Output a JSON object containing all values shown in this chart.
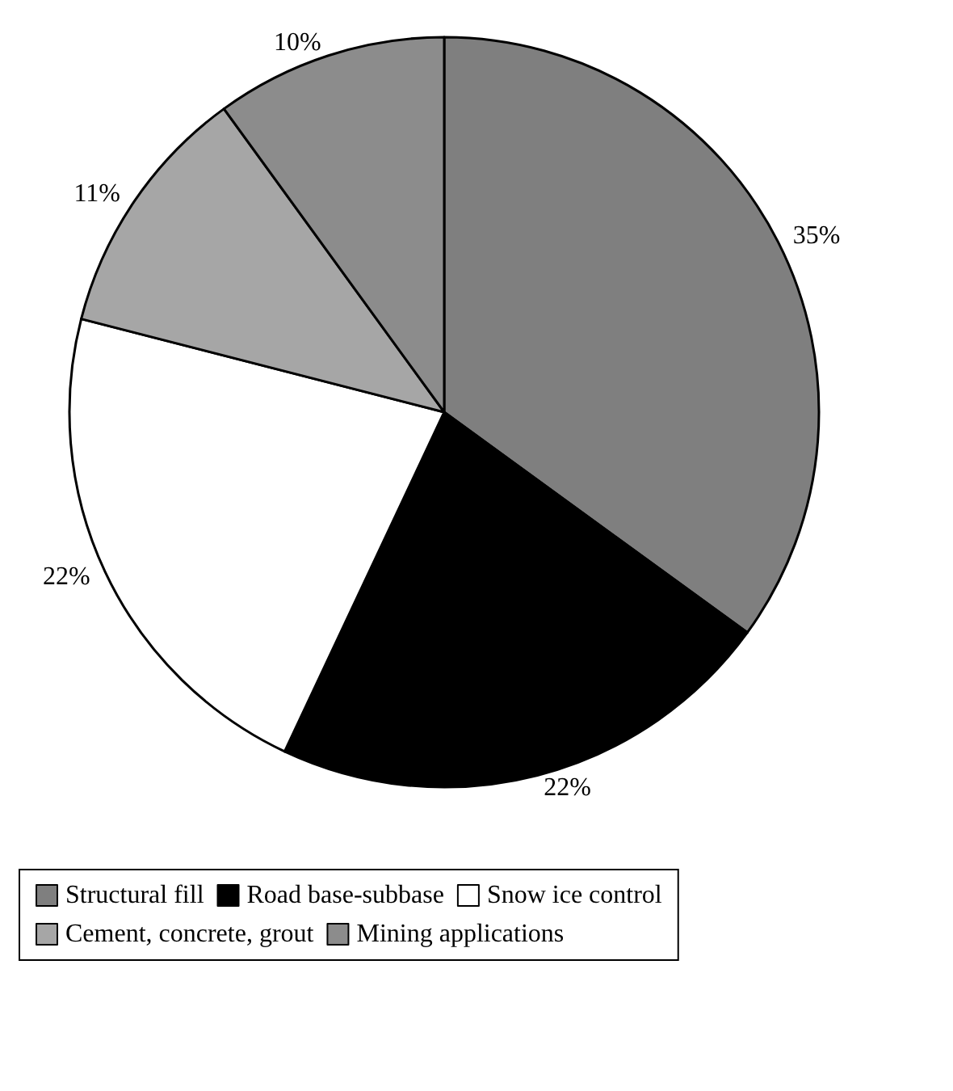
{
  "chart_data": {
    "type": "pie",
    "categories": [
      "Structural fill",
      "Road base-subbase",
      "Snow ice control",
      "Cement, concrete, grout",
      "Mining applications"
    ],
    "values": [
      35,
      22,
      22,
      11,
      10
    ],
    "colors": [
      "#7f7f7f",
      "#000000",
      "#ffffff",
      "#a6a6a6",
      "#8c8c8c"
    ],
    "value_labels": [
      "35%",
      "22%",
      "22%",
      "11%",
      "10%"
    ],
    "legend": "bottom"
  }
}
